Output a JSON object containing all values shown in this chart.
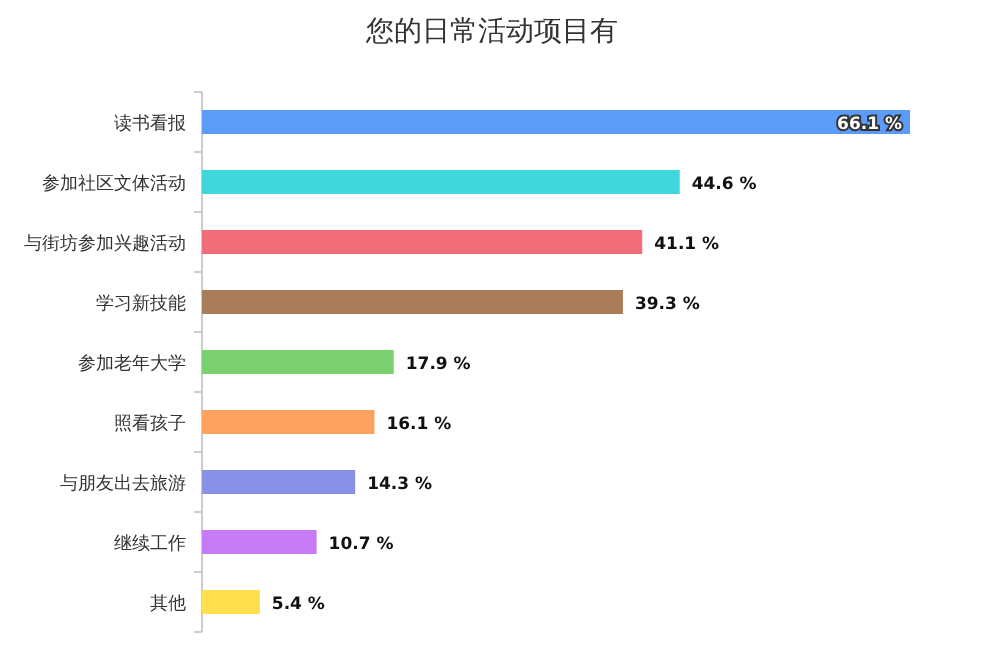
{
  "chart_data": {
    "type": "bar",
    "orientation": "horizontal",
    "title": "您的日常活动项目有",
    "categories": [
      "读书看报",
      "参加社区文体活动",
      "与街坊参加兴趣活动",
      "学习新技能",
      "参加老年大学",
      "照看孩子",
      "与朋友出去旅游",
      "继续工作",
      "其他"
    ],
    "values": [
      66.1,
      44.6,
      41.1,
      39.3,
      17.9,
      16.1,
      14.3,
      10.7,
      5.4
    ],
    "value_labels": [
      "66.1 %",
      "44.6 %",
      "41.1 %",
      "39.3 %",
      "17.9 %",
      "16.1 %",
      "14.3 %",
      "10.7 %",
      "5.4 %"
    ],
    "colors": [
      "#5b9cfb",
      "#3fd6dc",
      "#f06d79",
      "#a97c5a",
      "#7bd170",
      "#fda25f",
      "#8991e6",
      "#c67bf6",
      "#ffdf4e"
    ]
  }
}
